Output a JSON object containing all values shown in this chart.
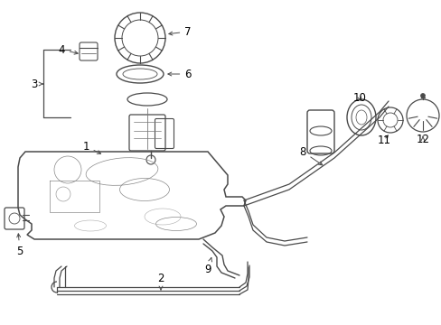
{
  "bg_color": "#ffffff",
  "line_color": "#4a4a4a",
  "label_color": "#000000",
  "font_size": 8.5,
  "figsize": [
    4.89,
    3.6
  ],
  "dpi": 100
}
